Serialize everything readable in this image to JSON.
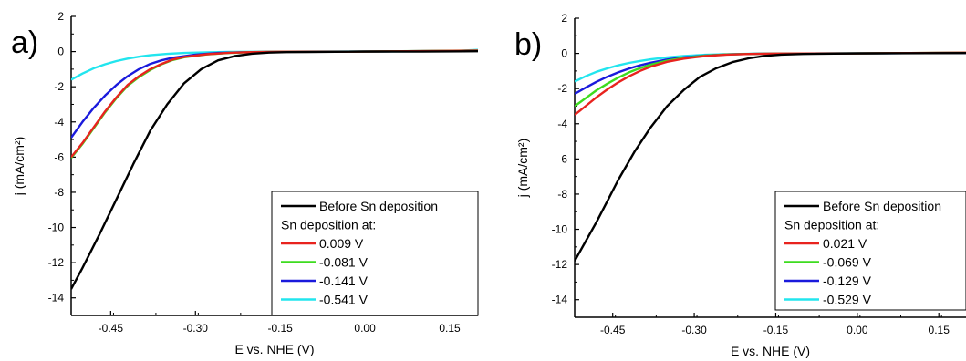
{
  "chart_data": [
    {
      "panel_label": "a)",
      "type": "line",
      "xlabel": "E vs. NHE (V)",
      "ylabel": "j (mA/cm²)",
      "xlim": [
        -0.52,
        0.2
      ],
      "ylim": [
        -15,
        2
      ],
      "x_ticks": [
        -0.45,
        -0.3,
        -0.15,
        0.0,
        0.15
      ],
      "x_tick_labels": [
        "-0.45",
        "-0.30",
        "-0.15",
        "0.00",
        "0.15"
      ],
      "y_ticks": [
        2,
        0,
        -2,
        -4,
        -6,
        -8,
        -10,
        -12,
        -14
      ],
      "y_tick_labels": [
        "2",
        "0",
        "-2",
        "-4",
        "-6",
        "-8",
        "-10",
        "-12",
        "-14"
      ],
      "grid": false,
      "legend_placement": "bottom-right",
      "legend_subheading": "Sn deposition at:",
      "series": [
        {
          "name": "Before Sn deposition",
          "color": "#000000",
          "points": [
            [
              -0.52,
              -13.5
            ],
            [
              -0.5,
              -12.3
            ],
            [
              -0.47,
              -10.4
            ],
            [
              -0.44,
              -8.4
            ],
            [
              -0.41,
              -6.4
            ],
            [
              -0.38,
              -4.5
            ],
            [
              -0.35,
              -3.0
            ],
            [
              -0.32,
              -1.8
            ],
            [
              -0.29,
              -1.0
            ],
            [
              -0.26,
              -0.5
            ],
            [
              -0.23,
              -0.25
            ],
            [
              -0.2,
              -0.12
            ],
            [
              -0.17,
              -0.06
            ],
            [
              -0.14,
              -0.03
            ],
            [
              -0.1,
              -0.02
            ],
            [
              0.0,
              0.0
            ],
            [
              0.1,
              0.0
            ],
            [
              0.2,
              0.02
            ]
          ]
        },
        {
          "name": "0.009 V",
          "color": "#e8231e",
          "points": [
            [
              -0.52,
              -6.0
            ],
            [
              -0.5,
              -5.2
            ],
            [
              -0.48,
              -4.3
            ],
            [
              -0.46,
              -3.4
            ],
            [
              -0.44,
              -2.6
            ],
            [
              -0.42,
              -1.9
            ],
            [
              -0.4,
              -1.4
            ],
            [
              -0.38,
              -1.0
            ],
            [
              -0.36,
              -0.7
            ],
            [
              -0.34,
              -0.45
            ],
            [
              -0.32,
              -0.3
            ],
            [
              -0.28,
              -0.15
            ],
            [
              -0.24,
              -0.07
            ],
            [
              -0.2,
              -0.03
            ],
            [
              -0.15,
              -0.01
            ],
            [
              0.0,
              0.0
            ],
            [
              0.2,
              0.05
            ]
          ]
        },
        {
          "name": "-0.081 V",
          "color": "#3ddc1f",
          "points": [
            [
              -0.52,
              -6.05
            ],
            [
              -0.5,
              -5.25
            ],
            [
              -0.48,
              -4.35
            ],
            [
              -0.46,
              -3.45
            ],
            [
              -0.44,
              -2.65
            ],
            [
              -0.42,
              -1.95
            ],
            [
              -0.4,
              -1.45
            ],
            [
              -0.38,
              -1.05
            ],
            [
              -0.36,
              -0.72
            ],
            [
              -0.34,
              -0.48
            ],
            [
              -0.32,
              -0.32
            ],
            [
              -0.28,
              -0.16
            ],
            [
              -0.24,
              -0.08
            ],
            [
              -0.2,
              -0.03
            ],
            [
              -0.15,
              -0.01
            ],
            [
              0.0,
              0.0
            ],
            [
              0.2,
              0.06
            ]
          ]
        },
        {
          "name": "-0.141 V",
          "color": "#1a1adc",
          "points": [
            [
              -0.52,
              -4.9
            ],
            [
              -0.5,
              -4.0
            ],
            [
              -0.48,
              -3.2
            ],
            [
              -0.46,
              -2.5
            ],
            [
              -0.44,
              -1.9
            ],
            [
              -0.42,
              -1.4
            ],
            [
              -0.4,
              -1.0
            ],
            [
              -0.38,
              -0.7
            ],
            [
              -0.36,
              -0.5
            ],
            [
              -0.34,
              -0.35
            ],
            [
              -0.3,
              -0.17
            ],
            [
              -0.26,
              -0.08
            ],
            [
              -0.22,
              -0.04
            ],
            [
              -0.15,
              -0.01
            ],
            [
              0.0,
              0.0
            ],
            [
              0.2,
              0.05
            ]
          ]
        },
        {
          "name": "-0.541 V",
          "color": "#22e5ee",
          "points": [
            [
              -0.52,
              -1.6
            ],
            [
              -0.5,
              -1.25
            ],
            [
              -0.48,
              -0.95
            ],
            [
              -0.46,
              -0.72
            ],
            [
              -0.44,
              -0.54
            ],
            [
              -0.42,
              -0.4
            ],
            [
              -0.4,
              -0.29
            ],
            [
              -0.38,
              -0.21
            ],
            [
              -0.35,
              -0.13
            ],
            [
              -0.32,
              -0.08
            ],
            [
              -0.28,
              -0.04
            ],
            [
              -0.24,
              -0.02
            ],
            [
              -0.18,
              -0.01
            ],
            [
              0.0,
              0.0
            ],
            [
              0.15,
              0.02
            ],
            [
              0.2,
              0.1
            ]
          ]
        }
      ]
    },
    {
      "panel_label": "b)",
      "type": "line",
      "xlabel": "E vs. NHE (V)",
      "ylabel": "j (mA/cm²)",
      "xlim": [
        -0.52,
        0.2
      ],
      "ylim": [
        -15,
        2
      ],
      "x_ticks": [
        -0.45,
        -0.3,
        -0.15,
        0.0,
        0.15
      ],
      "x_tick_labels": [
        "-0.45",
        "-0.30",
        "-0.15",
        "0.00",
        "0.15"
      ],
      "y_ticks": [
        2,
        0,
        -2,
        -4,
        -6,
        -8,
        -10,
        -12,
        -14
      ],
      "y_tick_labels": [
        "2",
        "0",
        "-2",
        "-4",
        "-6",
        "-8",
        "-10",
        "-12",
        "-14"
      ],
      "grid": false,
      "legend_placement": "bottom-right",
      "legend_subheading": "Sn deposition at:",
      "series": [
        {
          "name": "Before Sn deposition",
          "color": "#000000",
          "points": [
            [
              -0.52,
              -11.8
            ],
            [
              -0.5,
              -10.7
            ],
            [
              -0.48,
              -9.6
            ],
            [
              -0.46,
              -8.4
            ],
            [
              -0.44,
              -7.2
            ],
            [
              -0.41,
              -5.6
            ],
            [
              -0.38,
              -4.2
            ],
            [
              -0.35,
              -3.0
            ],
            [
              -0.32,
              -2.1
            ],
            [
              -0.29,
              -1.35
            ],
            [
              -0.26,
              -0.85
            ],
            [
              -0.23,
              -0.5
            ],
            [
              -0.2,
              -0.28
            ],
            [
              -0.17,
              -0.14
            ],
            [
              -0.14,
              -0.07
            ],
            [
              -0.1,
              -0.03
            ],
            [
              0.0,
              0.0
            ],
            [
              0.2,
              0.02
            ]
          ]
        },
        {
          "name": "0.021 V",
          "color": "#e8231e",
          "points": [
            [
              -0.52,
              -3.5
            ],
            [
              -0.5,
              -3.0
            ],
            [
              -0.48,
              -2.5
            ],
            [
              -0.46,
              -2.05
            ],
            [
              -0.44,
              -1.65
            ],
            [
              -0.42,
              -1.3
            ],
            [
              -0.4,
              -1.0
            ],
            [
              -0.38,
              -0.75
            ],
            [
              -0.35,
              -0.48
            ],
            [
              -0.32,
              -0.3
            ],
            [
              -0.28,
              -0.15
            ],
            [
              -0.24,
              -0.07
            ],
            [
              -0.2,
              -0.03
            ],
            [
              -0.15,
              -0.01
            ],
            [
              0.0,
              0.0
            ],
            [
              0.2,
              0.04
            ]
          ]
        },
        {
          "name": "-0.069 V",
          "color": "#3ddc1f",
          "points": [
            [
              -0.52,
              -3.0
            ],
            [
              -0.5,
              -2.55
            ],
            [
              -0.48,
              -2.1
            ],
            [
              -0.46,
              -1.72
            ],
            [
              -0.44,
              -1.38
            ],
            [
              -0.42,
              -1.08
            ],
            [
              -0.4,
              -0.84
            ],
            [
              -0.38,
              -0.64
            ],
            [
              -0.35,
              -0.41
            ],
            [
              -0.32,
              -0.26
            ],
            [
              -0.28,
              -0.13
            ],
            [
              -0.24,
              -0.06
            ],
            [
              -0.2,
              -0.03
            ],
            [
              -0.15,
              -0.01
            ],
            [
              0.0,
              0.0
            ],
            [
              0.2,
              0.04
            ]
          ]
        },
        {
          "name": "-0.129 V",
          "color": "#1a1adc",
          "points": [
            [
              -0.52,
              -2.3
            ],
            [
              -0.5,
              -1.95
            ],
            [
              -0.48,
              -1.62
            ],
            [
              -0.46,
              -1.33
            ],
            [
              -0.44,
              -1.08
            ],
            [
              -0.42,
              -0.86
            ],
            [
              -0.4,
              -0.68
            ],
            [
              -0.38,
              -0.53
            ],
            [
              -0.35,
              -0.35
            ],
            [
              -0.32,
              -0.23
            ],
            [
              -0.28,
              -0.12
            ],
            [
              -0.24,
              -0.06
            ],
            [
              -0.2,
              -0.03
            ],
            [
              -0.15,
              -0.01
            ],
            [
              0.0,
              0.0
            ],
            [
              0.2,
              0.03
            ]
          ]
        },
        {
          "name": "-0.529 V",
          "color": "#22e5ee",
          "points": [
            [
              -0.52,
              -1.6
            ],
            [
              -0.5,
              -1.3
            ],
            [
              -0.48,
              -1.05
            ],
            [
              -0.46,
              -0.85
            ],
            [
              -0.44,
              -0.68
            ],
            [
              -0.42,
              -0.54
            ],
            [
              -0.4,
              -0.43
            ],
            [
              -0.38,
              -0.34
            ],
            [
              -0.35,
              -0.23
            ],
            [
              -0.32,
              -0.15
            ],
            [
              -0.28,
              -0.08
            ],
            [
              -0.24,
              -0.04
            ],
            [
              -0.18,
              -0.01
            ],
            [
              0.0,
              0.0
            ],
            [
              0.2,
              0.03
            ]
          ]
        }
      ]
    }
  ]
}
